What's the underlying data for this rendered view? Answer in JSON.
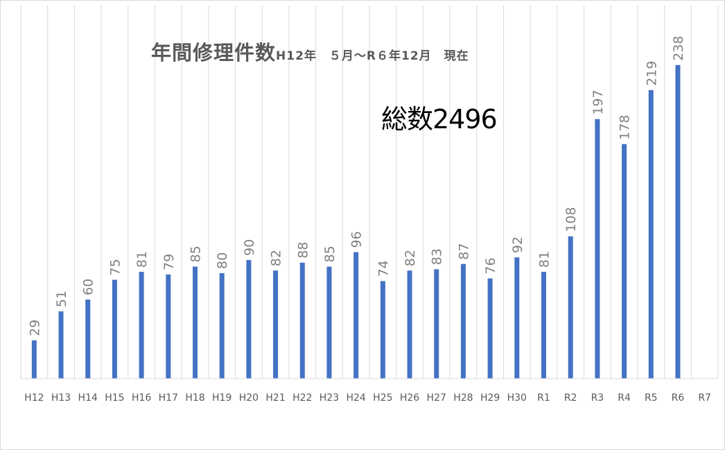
{
  "chart_data": {
    "type": "bar",
    "title": "年間修理件数",
    "subtitle": "H12年　５月～R６年12月　現在",
    "annotation": "総数2496",
    "categories": [
      "H12",
      "H13",
      "H14",
      "H15",
      "H16",
      "H17",
      "H18",
      "H19",
      "H20",
      "H21",
      "H22",
      "H23",
      "H24",
      "H25",
      "H26",
      "H27",
      "H28",
      "H29",
      "H30",
      "R1",
      "R2",
      "R3",
      "R4",
      "R5",
      "R6",
      "R7"
    ],
    "values": [
      29,
      51,
      60,
      75,
      81,
      79,
      85,
      80,
      90,
      82,
      88,
      85,
      96,
      74,
      82,
      83,
      87,
      76,
      92,
      81,
      108,
      197,
      178,
      219,
      238,
      null
    ],
    "ylim": [
      0,
      260
    ],
    "xlabel": "",
    "ylabel": "",
    "grid": "vertical",
    "legend": "none",
    "bar_color": "#4472c4",
    "grid_color": "#d9d9d9",
    "label_color": "#808080",
    "tick_color": "#595959"
  }
}
